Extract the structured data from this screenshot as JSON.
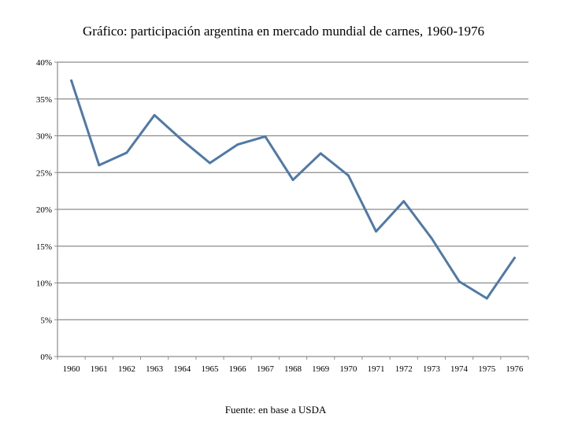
{
  "chart_data": {
    "type": "line",
    "title": "Gráfico: participación argentina en mercado mundial de carnes, 1960-1976",
    "xlabel": "",
    "ylabel": "",
    "source": "Fuente: en base a USDA",
    "categories": [
      "1960",
      "1961",
      "1962",
      "1963",
      "1964",
      "1965",
      "1966",
      "1967",
      "1968",
      "1969",
      "1970",
      "1971",
      "1972",
      "1973",
      "1974",
      "1975",
      "1976"
    ],
    "series": [
      {
        "name": "Participación argentina",
        "values": [
          37.5,
          26.0,
          27.7,
          32.8,
          29.4,
          26.3,
          28.8,
          29.9,
          24.0,
          27.6,
          24.6,
          17.0,
          21.1,
          16.1,
          10.2,
          7.9,
          13.4
        ]
      }
    ],
    "ylim": [
      0,
      40
    ],
    "yticks": [
      "0%",
      "5%",
      "10%",
      "15%",
      "20%",
      "25%",
      "30%",
      "35%",
      "40%"
    ],
    "ytick_values": [
      0,
      5,
      10,
      15,
      20,
      25,
      30,
      35,
      40
    ],
    "grid": true,
    "legend": "none",
    "colors": {
      "line": "#4F79A7",
      "grid": "#8C8C8C",
      "axis": "#8C8C8C"
    }
  }
}
